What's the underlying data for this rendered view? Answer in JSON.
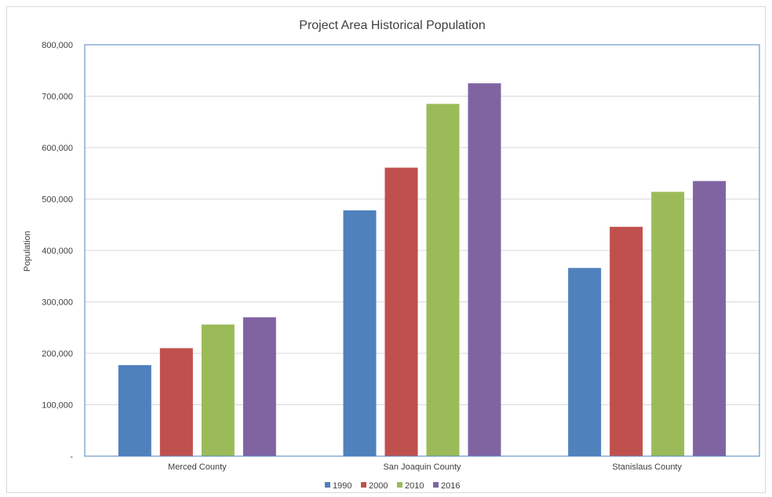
{
  "chart_data": {
    "type": "bar",
    "title": "Project Area Historical Population",
    "xlabel": "",
    "ylabel": "Population",
    "categories": [
      "Merced County",
      "San Joaquin County",
      "Stanislaus County"
    ],
    "series": [
      {
        "name": "1990",
        "color": "#4f81bd",
        "values": [
          177000,
          478000,
          366000
        ]
      },
      {
        "name": "2000",
        "color": "#c0504d",
        "values": [
          210000,
          561000,
          446000
        ]
      },
      {
        "name": "2010",
        "color": "#9bbb59",
        "values": [
          256000,
          685000,
          514000
        ]
      },
      {
        "name": "2016",
        "color": "#8064a2",
        "values": [
          270000,
          725000,
          535000
        ]
      }
    ],
    "ylim": [
      0,
      800000
    ],
    "yticks": [
      0,
      100000,
      200000,
      300000,
      400000,
      500000,
      600000,
      700000,
      800000
    ],
    "ytick_labels": [
      "-",
      "100,000",
      "200,000",
      "300,000",
      "400,000",
      "500,000",
      "600,000",
      "700,000",
      "800,000"
    ],
    "grid": true,
    "legend_position": "bottom"
  }
}
